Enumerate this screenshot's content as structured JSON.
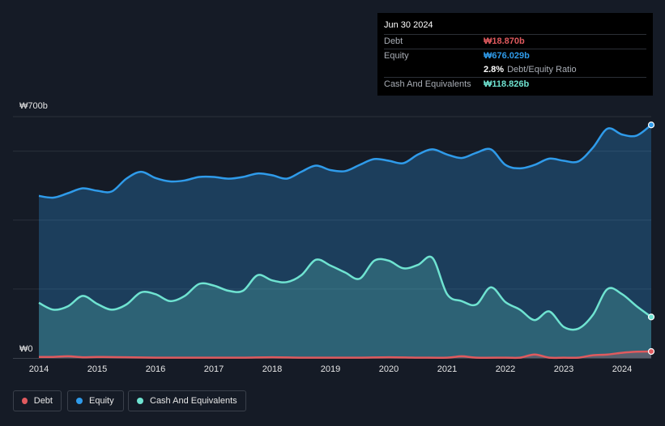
{
  "tooltip": {
    "date": "Jun 30 2024",
    "debt_label": "Debt",
    "debt_value": "₩18.870b",
    "equity_label": "Equity",
    "equity_value": "₩676.029b",
    "ratio_value": "2.8%",
    "ratio_label": "Debt/Equity Ratio",
    "cash_label": "Cash And Equivalents",
    "cash_value": "₩118.826b"
  },
  "colors": {
    "debt": "#e05a5e",
    "equity": "#2f9bea",
    "cash": "#6fe3d1",
    "background": "#151b26"
  },
  "legend": [
    {
      "name": "Debt",
      "color": "#e05a5e"
    },
    {
      "name": "Equity",
      "color": "#2f9bea"
    },
    {
      "name": "Cash And Equivalents",
      "color": "#6fe3d1"
    }
  ],
  "chart_data": {
    "type": "area",
    "ylim": [
      0,
      700
    ],
    "xlim": [
      2014.0,
      2024.5
    ],
    "y_unit": "₩ billions",
    "y_ticks": [
      {
        "value": 700,
        "label": "₩700b"
      },
      {
        "value": 0,
        "label": "₩0"
      }
    ],
    "x_ticks": [
      {
        "value": 2014,
        "label": "2014"
      },
      {
        "value": 2015,
        "label": "2015"
      },
      {
        "value": 2016,
        "label": "2016"
      },
      {
        "value": 2017,
        "label": "2017"
      },
      {
        "value": 2018,
        "label": "2018"
      },
      {
        "value": 2019,
        "label": "2019"
      },
      {
        "value": 2020,
        "label": "2020"
      },
      {
        "value": 2021,
        "label": "2021"
      },
      {
        "value": 2022,
        "label": "2022"
      },
      {
        "value": 2023,
        "label": "2023"
      },
      {
        "value": 2024,
        "label": "2024"
      }
    ],
    "legend_position": "bottom-left",
    "grid": true,
    "series": [
      {
        "name": "Equity",
        "x": [
          2014.0,
          2014.25,
          2014.5,
          2014.75,
          2015.0,
          2015.25,
          2015.5,
          2015.75,
          2016.0,
          2016.25,
          2016.5,
          2016.75,
          2017.0,
          2017.25,
          2017.5,
          2017.75,
          2018.0,
          2018.25,
          2018.5,
          2018.75,
          2019.0,
          2019.25,
          2019.5,
          2019.75,
          2020.0,
          2020.25,
          2020.5,
          2020.75,
          2021.0,
          2021.25,
          2021.5,
          2021.75,
          2022.0,
          2022.25,
          2022.5,
          2022.75,
          2023.0,
          2023.25,
          2023.5,
          2023.75,
          2024.0,
          2024.25,
          2024.5
        ],
        "values": [
          470,
          465,
          478,
          492,
          485,
          483,
          520,
          540,
          522,
          512,
          515,
          525,
          525,
          520,
          525,
          535,
          530,
          520,
          540,
          558,
          545,
          542,
          560,
          577,
          572,
          565,
          590,
          605,
          590,
          580,
          595,
          605,
          560,
          550,
          560,
          578,
          572,
          570,
          610,
          665,
          648,
          645,
          676
        ]
      },
      {
        "name": "Cash And Equivalents",
        "x": [
          2014.0,
          2014.25,
          2014.5,
          2014.75,
          2015.0,
          2015.25,
          2015.5,
          2015.75,
          2016.0,
          2016.25,
          2016.5,
          2016.75,
          2017.0,
          2017.25,
          2017.5,
          2017.75,
          2018.0,
          2018.25,
          2018.5,
          2018.75,
          2019.0,
          2019.25,
          2019.5,
          2019.75,
          2020.0,
          2020.25,
          2020.5,
          2020.75,
          2021.0,
          2021.25,
          2021.5,
          2021.75,
          2022.0,
          2022.25,
          2022.5,
          2022.75,
          2023.0,
          2023.25,
          2023.5,
          2023.75,
          2024.0,
          2024.25,
          2024.5
        ],
        "values": [
          160,
          140,
          150,
          180,
          157,
          140,
          155,
          190,
          185,
          165,
          180,
          215,
          210,
          195,
          195,
          240,
          225,
          220,
          240,
          285,
          268,
          248,
          230,
          282,
          282,
          260,
          270,
          290,
          185,
          165,
          155,
          205,
          162,
          140,
          110,
          135,
          90,
          85,
          125,
          200,
          185,
          150,
          119
        ]
      },
      {
        "name": "Debt",
        "x": [
          2014.0,
          2014.25,
          2014.5,
          2014.75,
          2015.0,
          2015.5,
          2016.0,
          2016.5,
          2017.0,
          2017.5,
          2018.0,
          2018.5,
          2019.0,
          2019.5,
          2020.0,
          2020.5,
          2021.0,
          2021.25,
          2021.5,
          2022.0,
          2022.25,
          2022.5,
          2022.75,
          2023.0,
          2023.25,
          2023.5,
          2023.75,
          2024.0,
          2024.25,
          2024.5
        ],
        "values": [
          3,
          3,
          5,
          2,
          3,
          2,
          1,
          1,
          1,
          1,
          2,
          1,
          1,
          1,
          2,
          1,
          1,
          5,
          1,
          1,
          1,
          10,
          1,
          1,
          1,
          8,
          10,
          15,
          18,
          18.87
        ]
      }
    ]
  }
}
